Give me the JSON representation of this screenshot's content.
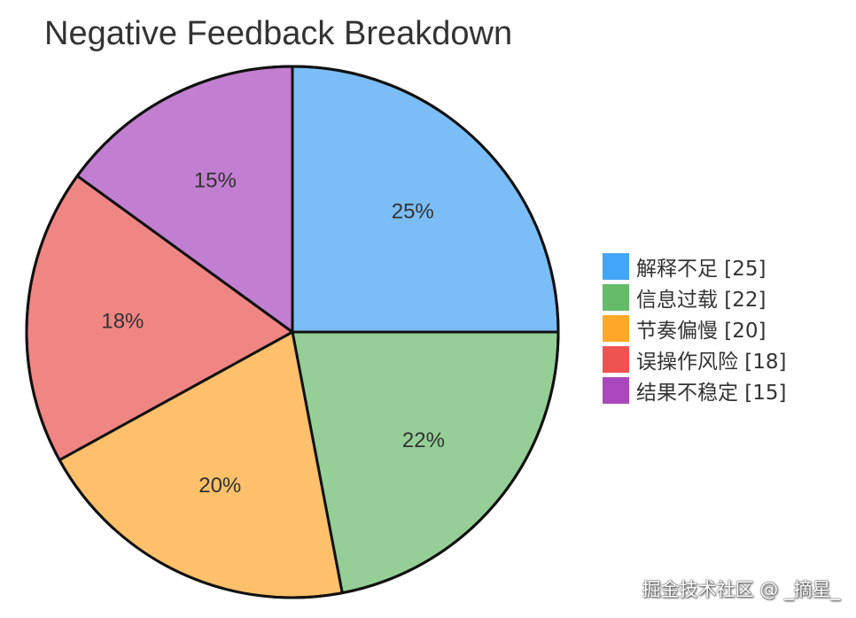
{
  "chart_data": {
    "type": "pie",
    "title": "Negative Feedback Breakdown",
    "categories": [
      "解释不足",
      "信息过载",
      "节奏偏慢",
      "误操作风险",
      "结果不稳定"
    ],
    "values": [
      25,
      22,
      20,
      18,
      15
    ],
    "slice_labels": [
      "25%",
      "22%",
      "20%",
      "18%",
      "15%"
    ],
    "legend_labels": [
      "解释不足 [25]",
      "信息过载 [22]",
      "节奏偏慢 [20]",
      "误操作风险 [18]",
      "结果不稳定 [15]"
    ],
    "slice_colors": [
      "#7bbdf7",
      "#95cf97",
      "#fec06a",
      "#f08684",
      "#c27ed0"
    ],
    "legend_colors": [
      "#42a5f5",
      "#66bb6a",
      "#ffa726",
      "#ef5350",
      "#ab47bc"
    ],
    "start": "12 o'clock",
    "direction": "clockwise",
    "legend_position": "right"
  },
  "watermark": "掘金技术社区 @ _摘星_"
}
